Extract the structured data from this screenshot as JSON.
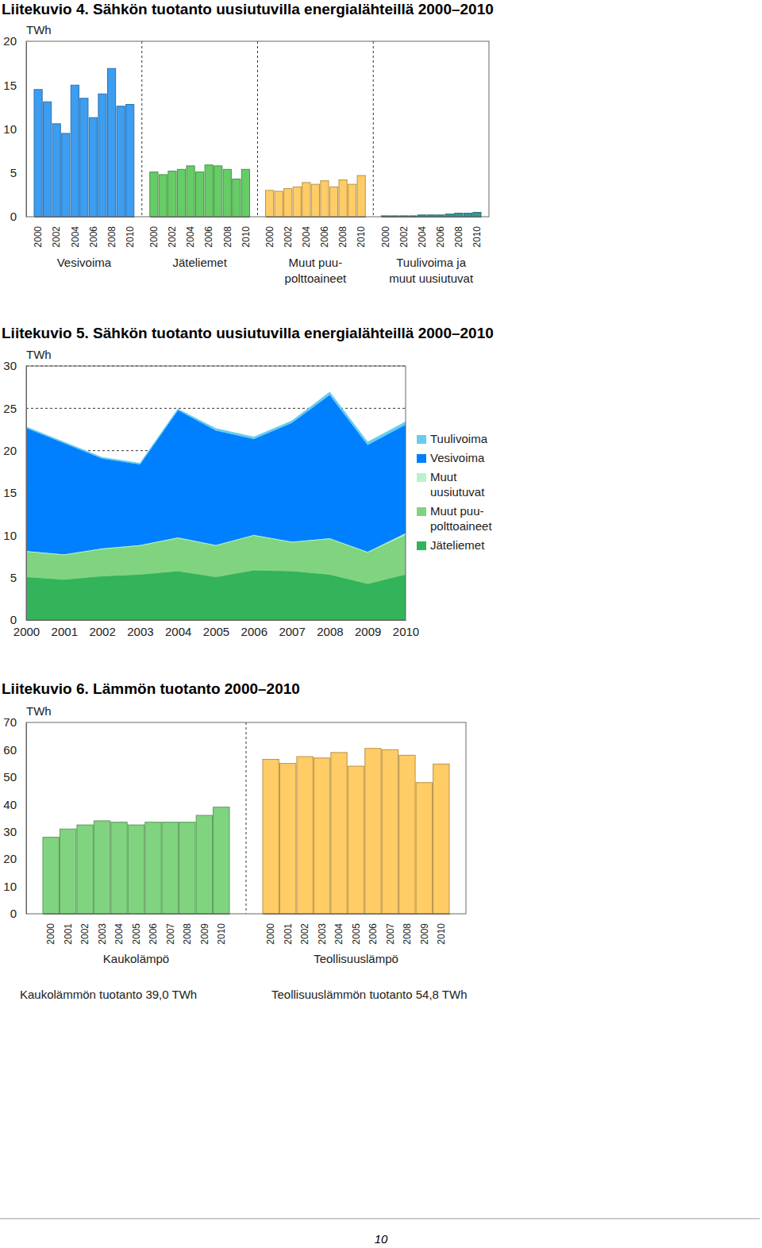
{
  "chart_data": [
    {
      "type": "bar",
      "title": "Liitekuvio 4. Sähkön tuotanto uusiutuvilla energialähteillä 2000–2010",
      "y_label": "TWh",
      "categories": [
        "2000",
        null,
        "2002",
        null,
        "2004",
        null,
        "2006",
        null,
        "2008",
        null,
        "2010"
      ],
      "series": [
        {
          "name": "Vesivoima",
          "color": "#3d9df0",
          "values": [
            14.5,
            13.1,
            10.6,
            9.5,
            15.0,
            13.5,
            11.3,
            14.0,
            16.9,
            12.6,
            12.8
          ]
        },
        {
          "name": "Jäteliemet",
          "color": "#66cc66",
          "values": [
            5.1,
            4.8,
            5.2,
            5.4,
            5.8,
            5.1,
            5.9,
            5.8,
            5.4,
            4.3,
            5.4
          ]
        },
        {
          "name": "Muut puu-\npolttoaineet",
          "color": "#ffcc66",
          "values": [
            3.0,
            2.9,
            3.2,
            3.4,
            3.9,
            3.7,
            4.1,
            3.4,
            4.2,
            3.7,
            4.7
          ]
        },
        {
          "name": "Tuulivoima ja\nmuut uusiutuvat",
          "color": "#339999",
          "values": [
            0.1,
            0.1,
            0.1,
            0.1,
            0.2,
            0.2,
            0.2,
            0.3,
            0.4,
            0.4,
            0.5
          ]
        }
      ],
      "ylim": [
        0,
        20
      ],
      "yticks": [
        0,
        5,
        10,
        15,
        20
      ],
      "grid": false
    },
    {
      "type": "area",
      "stacked": true,
      "title": "Liitekuvio 5. Sähkön tuotanto uusiutuvilla energialähteillä 2000–2010",
      "y_label": "TWh",
      "x": [
        2000,
        2001,
        2002,
        2003,
        2004,
        2005,
        2006,
        2007,
        2008,
        2009,
        2010
      ],
      "xlim": [
        2000,
        2010
      ],
      "xticks": [
        2000,
        2001,
        2002,
        2003,
        2004,
        2005,
        2006,
        2007,
        2008,
        2009,
        2010
      ],
      "series": [
        {
          "name": "Tuulivoima",
          "color": "#66ccee",
          "values": [
            0.1,
            0.1,
            0.1,
            0.1,
            0.1,
            0.2,
            0.2,
            0.2,
            0.3,
            0.3,
            0.3
          ]
        },
        {
          "name": "Vesivoima",
          "color": "#0080ff",
          "values": [
            14.5,
            13.1,
            10.6,
            9.5,
            15.0,
            13.5,
            11.3,
            14.0,
            16.9,
            12.6,
            12.8
          ]
        },
        {
          "name": "Muut\nuusiutuvat",
          "color": "#b8f2cc",
          "values": [
            0.1,
            0.1,
            0.1,
            0.1,
            0.1,
            0.1,
            0.1,
            0.1,
            0.1,
            0.1,
            0.2
          ]
        },
        {
          "name": "Muut puu-\npolttoaineet",
          "color": "#80d480",
          "values": [
            3.0,
            2.9,
            3.2,
            3.4,
            3.9,
            3.7,
            4.1,
            3.4,
            4.2,
            3.7,
            4.7
          ]
        },
        {
          "name": "Jäteliemet",
          "color": "#33b35a",
          "values": [
            5.1,
            4.8,
            5.2,
            5.4,
            5.8,
            5.1,
            5.9,
            5.8,
            5.4,
            4.3,
            5.4
          ]
        }
      ],
      "ylim": [
        0,
        30
      ],
      "yticks": [
        0,
        5,
        10,
        15,
        20,
        25,
        30
      ],
      "grid": true,
      "legend": "right"
    },
    {
      "type": "bar",
      "title": "Liitekuvio 6. Lämmön tuotanto 2000–2010",
      "y_label": "TWh",
      "categories": [
        "2000",
        "2001",
        "2002",
        "2003",
        "2004",
        "2005",
        "2006",
        "2007",
        "2008",
        "2009",
        "2010"
      ],
      "series": [
        {
          "name": "Kaukolämpö",
          "color": "#80d480",
          "values": [
            28.0,
            31.0,
            32.5,
            34.0,
            33.5,
            32.5,
            33.5,
            33.5,
            33.5,
            36.0,
            39.0
          ]
        },
        {
          "name": "Teollisuuslämpö",
          "color": "#ffcc66",
          "values": [
            56.5,
            55.0,
            57.5,
            57.0,
            59.0,
            54.0,
            60.5,
            60.0,
            58.0,
            48.0,
            54.8
          ]
        }
      ],
      "ylim": [
        0,
        70
      ],
      "yticks": [
        0,
        10,
        20,
        30,
        40,
        50,
        60,
        70
      ],
      "grid": false,
      "annotations": [
        "Kaukolämmön tuotanto 39,0 TWh",
        "Teollisuuslämmön tuotanto 54,8 TWh"
      ]
    }
  ],
  "page_number": "10"
}
